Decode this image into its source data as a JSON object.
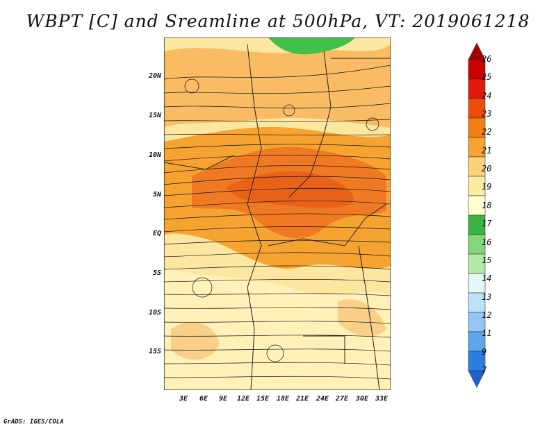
{
  "title": "WBPT [C] and Sreamline at 500hPa, VT: 2019061218",
  "footer": "GrADS: IGES/COLA",
  "axes": {
    "y_ticks": [
      "20N",
      "15N",
      "10N",
      "5N",
      "EQ",
      "5S",
      "10S",
      "15S"
    ],
    "x_ticks": [
      "3E",
      "6E",
      "9E",
      "12E",
      "15E",
      "18E",
      "21E",
      "24E",
      "27E",
      "30E",
      "33E"
    ]
  },
  "colorbar": {
    "labels": [
      "26",
      "25",
      "24",
      "23",
      "22",
      "21",
      "20",
      "19",
      "18",
      "17",
      "16",
      "15",
      "14",
      "13",
      "12",
      "11",
      "9",
      "7"
    ],
    "colors": [
      "#a50000",
      "#c80000",
      "#e11a0a",
      "#f04a0a",
      "#f27f10",
      "#f6a332",
      "#fbd27a",
      "#fdeba2",
      "#ffffd0",
      "#3cb445",
      "#82d77a",
      "#b3e8a6",
      "#e4f8f7",
      "#bde0fb",
      "#93c6f5",
      "#5da6eb",
      "#2b7fe0",
      "#1f60d0"
    ]
  },
  "colors": {
    "green_area": "#41c04a",
    "orange_core": "#f07a24",
    "dark_orange": "#e9621a",
    "light_orange": "#f9b35a",
    "yellow": "#fde7a0",
    "pale_yellow": "#fff1b8"
  }
}
